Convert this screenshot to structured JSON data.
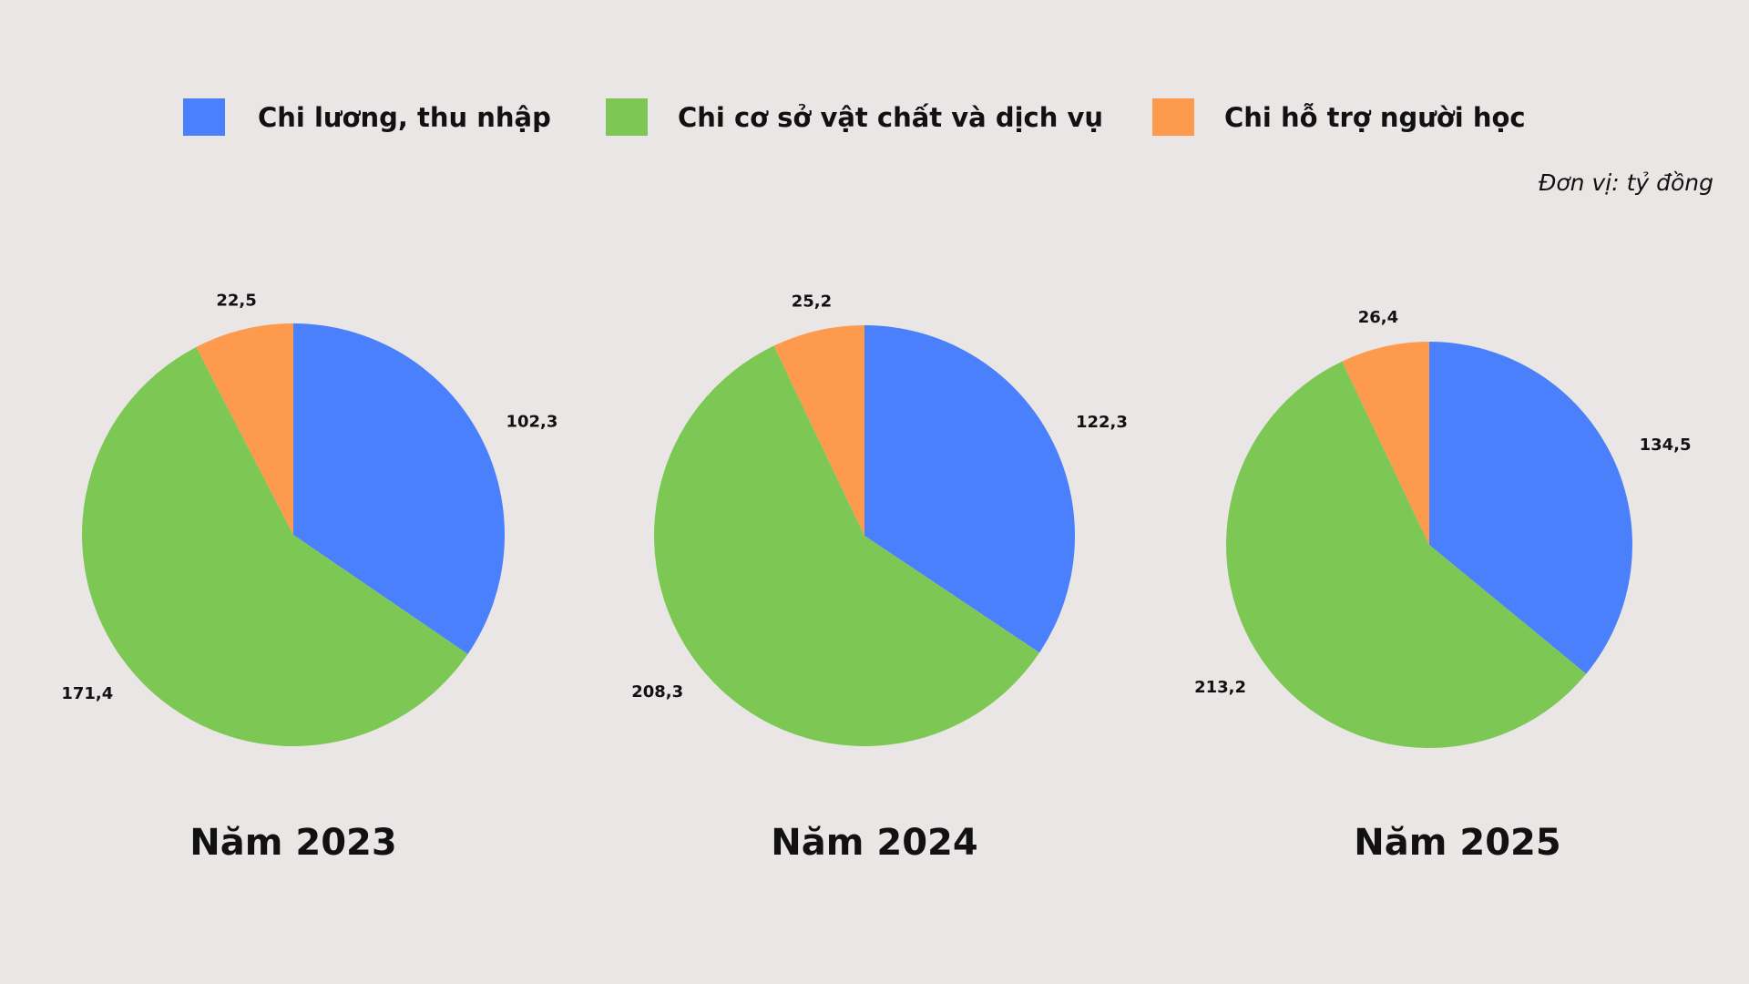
{
  "legend": [
    {
      "name": "Chi lương, thu nhập",
      "color": "#4a80fb"
    },
    {
      "name": "Chi cơ sở vật chất và dịch vụ",
      "color": "#7dc855"
    },
    {
      "name": "Chi hỗ trợ người học",
      "color": "#fd9a4e"
    }
  ],
  "unit": "Đơn vị: tỷ đồng",
  "chart_data": [
    {
      "type": "pie",
      "title": "Năm 2023",
      "values": [
        102.3,
        171.4,
        22.5
      ],
      "value_labels": [
        "102,3",
        "171,4",
        "22,5"
      ]
    },
    {
      "type": "pie",
      "title": "Năm 2024",
      "values": [
        122.3,
        208.3,
        25.2
      ],
      "value_labels": [
        "122,3",
        "208,3",
        "25,2"
      ]
    },
    {
      "type": "pie",
      "title": "Năm 2025",
      "values": [
        134.5,
        213.2,
        26.4
      ],
      "value_labels": [
        "134,5",
        "213,2",
        "26,4"
      ]
    }
  ]
}
